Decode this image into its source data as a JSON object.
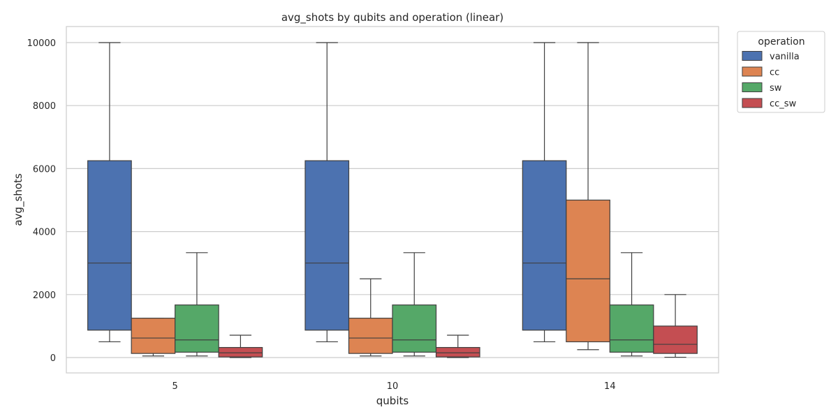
{
  "chart_data": {
    "type": "box",
    "title": "avg_shots by qubits and operation (linear)",
    "xlabel": "qubits",
    "ylabel": "avg_shots",
    "categories": [
      "5",
      "10",
      "14"
    ],
    "ylim": [
      -500,
      10500
    ],
    "yticks": [
      0,
      2000,
      4000,
      6000,
      8000,
      10000
    ],
    "grid": true,
    "legend": {
      "title": "operation",
      "position": "outside-top-right"
    },
    "series": [
      {
        "name": "vanilla",
        "color": "#4c72b0",
        "boxes": [
          {
            "whisker_low": 500,
            "q1": 870,
            "median": 3000,
            "q3": 6250,
            "whisker_high": 10000
          },
          {
            "whisker_low": 500,
            "q1": 870,
            "median": 3000,
            "q3": 6250,
            "whisker_high": 10000
          },
          {
            "whisker_low": 500,
            "q1": 870,
            "median": 3000,
            "q3": 6250,
            "whisker_high": 10000
          }
        ]
      },
      {
        "name": "cc",
        "color": "#dd8452",
        "boxes": [
          {
            "whisker_low": 50,
            "q1": 130,
            "median": 620,
            "q3": 1250,
            "whisker_high": 1250
          },
          {
            "whisker_low": 50,
            "q1": 130,
            "median": 620,
            "q3": 1250,
            "whisker_high": 2500
          },
          {
            "whisker_low": 250,
            "q1": 500,
            "median": 2500,
            "q3": 5000,
            "whisker_high": 10000
          }
        ]
      },
      {
        "name": "sw",
        "color": "#55a868",
        "boxes": [
          {
            "whisker_low": 50,
            "q1": 170,
            "median": 560,
            "q3": 1670,
            "whisker_high": 3330
          },
          {
            "whisker_low": 50,
            "q1": 170,
            "median": 560,
            "q3": 1670,
            "whisker_high": 3330
          },
          {
            "whisker_low": 50,
            "q1": 170,
            "median": 560,
            "q3": 1670,
            "whisker_high": 3330
          }
        ]
      },
      {
        "name": "cc_sw",
        "color": "#c44e52",
        "boxes": [
          {
            "whisker_low": 0,
            "q1": 20,
            "median": 150,
            "q3": 320,
            "whisker_high": 710
          },
          {
            "whisker_low": 0,
            "q1": 20,
            "median": 150,
            "q3": 320,
            "whisker_high": 710
          },
          {
            "whisker_low": 10,
            "q1": 130,
            "median": 420,
            "q3": 1000,
            "whisker_high": 2000
          }
        ]
      }
    ]
  }
}
